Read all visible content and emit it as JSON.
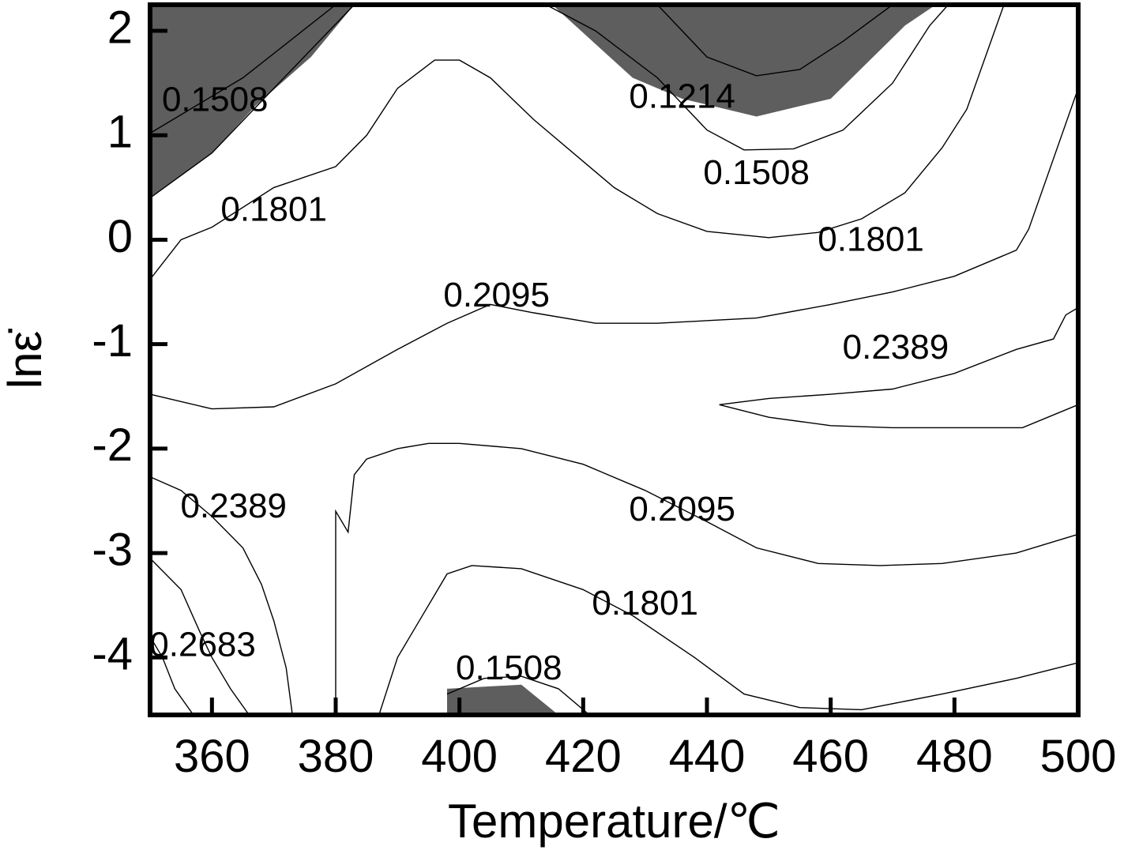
{
  "chart_data": {
    "type": "contour",
    "xlabel": "Temperature/℃",
    "ylabel": "lnε̇",
    "xlim": [
      350,
      500
    ],
    "ylim": [
      -4.55,
      2.25
    ],
    "xticks": [
      360,
      380,
      400,
      420,
      440,
      460,
      480,
      500
    ],
    "yticks": [
      2,
      1,
      0,
      -1,
      -2,
      -3,
      -4
    ],
    "grid": false,
    "legend": "none",
    "colors": {
      "unstable_region": "#5e5e5e",
      "lines": "#000000",
      "background": "#ffffff"
    },
    "shaded_regions": [
      {
        "name": "top-left",
        "points": [
          [
            350,
            2.25
          ],
          [
            383,
            2.25
          ],
          [
            376,
            1.75
          ],
          [
            367,
            1.28
          ],
          [
            360,
            0.83
          ],
          [
            350,
            0.4
          ]
        ]
      },
      {
        "name": "top-middle",
        "points": [
          [
            415,
            2.25
          ],
          [
            477,
            2.25
          ],
          [
            472,
            2.05
          ],
          [
            460,
            1.35
          ],
          [
            448,
            1.18
          ],
          [
            436,
            1.35
          ],
          [
            428,
            1.55
          ]
        ]
      },
      {
        "name": "bottom-middle",
        "points": [
          [
            398,
            -4.3
          ],
          [
            410,
            -4.26
          ],
          [
            416,
            -4.55
          ],
          [
            398,
            -4.55
          ]
        ]
      }
    ],
    "contour_lines": [
      {
        "label": "0.1214",
        "points": [
          [
            350,
            1.02
          ],
          [
            365,
            1.55
          ],
          [
            380,
            2.25
          ]
        ]
      },
      {
        "label": "0.1214",
        "points": [
          [
            432,
            2.25
          ],
          [
            440,
            1.75
          ],
          [
            448,
            1.57
          ],
          [
            455,
            1.63
          ],
          [
            462,
            1.9
          ],
          [
            470,
            2.25
          ]
        ]
      },
      {
        "label": "0.1508",
        "points": [
          [
            350,
            0.4
          ],
          [
            360,
            0.83
          ],
          [
            370,
            1.45
          ],
          [
            383,
            2.25
          ]
        ]
      },
      {
        "label": "0.1508",
        "points": [
          [
            414,
            2.25
          ],
          [
            422,
            2.0
          ],
          [
            432,
            1.55
          ],
          [
            440,
            1.05
          ],
          [
            446,
            0.86
          ],
          [
            454,
            0.87
          ],
          [
            462,
            1.05
          ],
          [
            470,
            1.5
          ],
          [
            476,
            2.05
          ],
          [
            479,
            2.25
          ]
        ]
      },
      {
        "label": "0.1801",
        "points": [
          [
            350,
            -0.38
          ],
          [
            355,
            0
          ],
          [
            360,
            0.12
          ],
          [
            370,
            0.5
          ],
          [
            380,
            0.7
          ],
          [
            385,
            1.0
          ],
          [
            390,
            1.45
          ],
          [
            396,
            1.72
          ],
          [
            400,
            1.72
          ],
          [
            405,
            1.55
          ],
          [
            412,
            1.15
          ],
          [
            420,
            0.75
          ],
          [
            425,
            0.5
          ],
          [
            432,
            0.25
          ],
          [
            440,
            0.08
          ],
          [
            450,
            0.02
          ],
          [
            458,
            0.07
          ],
          [
            465,
            0.2
          ],
          [
            472,
            0.45
          ],
          [
            478,
            0.88
          ],
          [
            482,
            1.25
          ],
          [
            488,
            2.25
          ]
        ]
      },
      {
        "label": "0.2095",
        "points": [
          [
            350,
            -1.48
          ],
          [
            360,
            -1.62
          ],
          [
            370,
            -1.6
          ],
          [
            380,
            -1.38
          ],
          [
            390,
            -1.05
          ],
          [
            398,
            -0.8
          ],
          [
            405,
            -0.62
          ],
          [
            412,
            -0.7
          ],
          [
            422,
            -0.8
          ],
          [
            432,
            -0.8
          ],
          [
            448,
            -0.75
          ],
          [
            460,
            -0.62
          ],
          [
            470,
            -0.5
          ],
          [
            480,
            -0.35
          ],
          [
            490,
            -0.1
          ],
          [
            492,
            0.1
          ],
          [
            500,
            1.45
          ]
        ]
      },
      {
        "label": "0.2389",
        "points": [
          [
            500,
            -0.65
          ],
          [
            498,
            -0.72
          ],
          [
            496,
            -0.95
          ],
          [
            490,
            -1.05
          ],
          [
            480,
            -1.28
          ],
          [
            470,
            -1.43
          ],
          [
            460,
            -1.48
          ],
          [
            450,
            -1.52
          ],
          [
            442,
            -1.58
          ],
          [
            450,
            -1.7
          ],
          [
            460,
            -1.78
          ],
          [
            470,
            -1.8
          ],
          [
            480,
            -1.8
          ],
          [
            491,
            -1.8
          ],
          [
            500,
            -1.58
          ]
        ]
      },
      {
        "label": "0.2389",
        "points": [
          [
            350,
            -2.27
          ],
          [
            355,
            -2.4
          ],
          [
            360,
            -2.65
          ],
          [
            365,
            -2.95
          ],
          [
            368,
            -3.3
          ],
          [
            370,
            -3.65
          ],
          [
            372,
            -4.1
          ],
          [
            373,
            -4.55
          ]
        ]
      },
      {
        "label": "0.2095",
        "points": [
          [
            380,
            -4.55
          ],
          [
            380,
            -2.6
          ],
          [
            382,
            -2.8
          ],
          [
            383,
            -2.25
          ],
          [
            385,
            -2.1
          ],
          [
            390,
            -2.0
          ],
          [
            395,
            -1.95
          ],
          [
            400,
            -1.95
          ],
          [
            410,
            -2.0
          ],
          [
            420,
            -2.15
          ],
          [
            430,
            -2.4
          ],
          [
            440,
            -2.7
          ],
          [
            448,
            -2.95
          ],
          [
            458,
            -3.1
          ],
          [
            468,
            -3.12
          ],
          [
            478,
            -3.1
          ],
          [
            490,
            -3.0
          ],
          [
            500,
            -2.82
          ]
        ]
      },
      {
        "label": "0.1801",
        "points": [
          [
            387,
            -4.55
          ],
          [
            390,
            -4.0
          ],
          [
            392,
            -3.8
          ],
          [
            395,
            -3.5
          ],
          [
            398,
            -3.2
          ],
          [
            402,
            -3.12
          ],
          [
            410,
            -3.15
          ],
          [
            420,
            -3.35
          ],
          [
            428,
            -3.6
          ],
          [
            438,
            -4.0
          ],
          [
            446,
            -4.35
          ],
          [
            455,
            -4.48
          ],
          [
            465,
            -4.5
          ],
          [
            478,
            -4.35
          ],
          [
            490,
            -4.2
          ],
          [
            500,
            -4.05
          ]
        ]
      },
      {
        "label": "0.1508",
        "points": [
          [
            398,
            -4.35
          ],
          [
            404,
            -4.2
          ],
          [
            410,
            -4.18
          ],
          [
            416,
            -4.3
          ],
          [
            421,
            -4.55
          ]
        ]
      },
      {
        "label": "0.2683",
        "points": [
          [
            350,
            -3.05
          ],
          [
            355,
            -3.35
          ],
          [
            358,
            -3.75
          ],
          [
            360,
            -4.0
          ],
          [
            363,
            -4.3
          ],
          [
            366,
            -4.55
          ]
        ]
      },
      {
        "label": "",
        "points": [
          [
            350,
            -3.8
          ],
          [
            352,
            -4.0
          ],
          [
            354,
            -4.3
          ],
          [
            357,
            -4.55
          ]
        ]
      }
    ],
    "contour_labels": [
      {
        "text": "0.1508",
        "x": 360.5,
        "y": 1.32
      },
      {
        "text": "0.1214",
        "x": 436,
        "y": 1.35
      },
      {
        "text": "0.1508",
        "x": 448,
        "y": 0.62
      },
      {
        "text": "0.1801",
        "x": 370,
        "y": 0.27
      },
      {
        "text": "0.1801",
        "x": 466.5,
        "y": -0.02
      },
      {
        "text": "0.2095",
        "x": 406,
        "y": -0.55
      },
      {
        "text": "0.2389",
        "x": 470.5,
        "y": -1.05
      },
      {
        "text": "0.2389",
        "x": 363.5,
        "y": -2.57
      },
      {
        "text": "0.2095",
        "x": 436,
        "y": -2.6
      },
      {
        "text": "0.1801",
        "x": 430,
        "y": -3.5
      },
      {
        "text": "0.2683",
        "x": 358.5,
        "y": -3.9
      },
      {
        "text": "0.1508",
        "x": 408,
        "y": -4.12
      }
    ]
  }
}
